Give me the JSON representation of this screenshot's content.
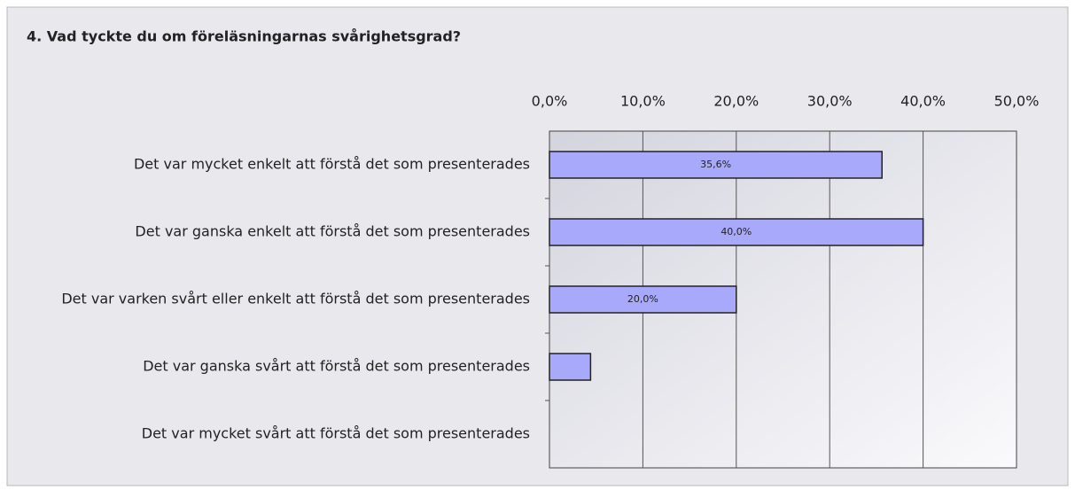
{
  "chart_data": {
    "type": "barh",
    "title": "4. Vad tyckte du om föreläsningarnas svårighetsgrad?",
    "categories": [
      "Det var mycket enkelt att förstå det som presenterades",
      "Det var ganska enkelt att förstå det som presenterades",
      "Det var varken svårt eller enkelt att förstå det som presenterades",
      "Det var ganska svårt att förstå det som presenterades",
      "Det var mycket svårt att förstå det som presenterades"
    ],
    "values": [
      35.6,
      40.0,
      20.0,
      4.4,
      0
    ],
    "value_labels": [
      "35,6%",
      "40,0%",
      "20,0%",
      null,
      null
    ],
    "color": "#a9a9fb",
    "xlim": [
      0,
      50
    ],
    "xticks": [
      {
        "value": 0,
        "label": "0,0%"
      },
      {
        "value": 10,
        "label": "10,0%"
      },
      {
        "value": 20,
        "label": "20,0%"
      },
      {
        "value": 30,
        "label": "30,0%"
      },
      {
        "value": 40,
        "label": "40,0%"
      },
      {
        "value": 50,
        "label": "50,0%"
      }
    ],
    "grid": true
  }
}
